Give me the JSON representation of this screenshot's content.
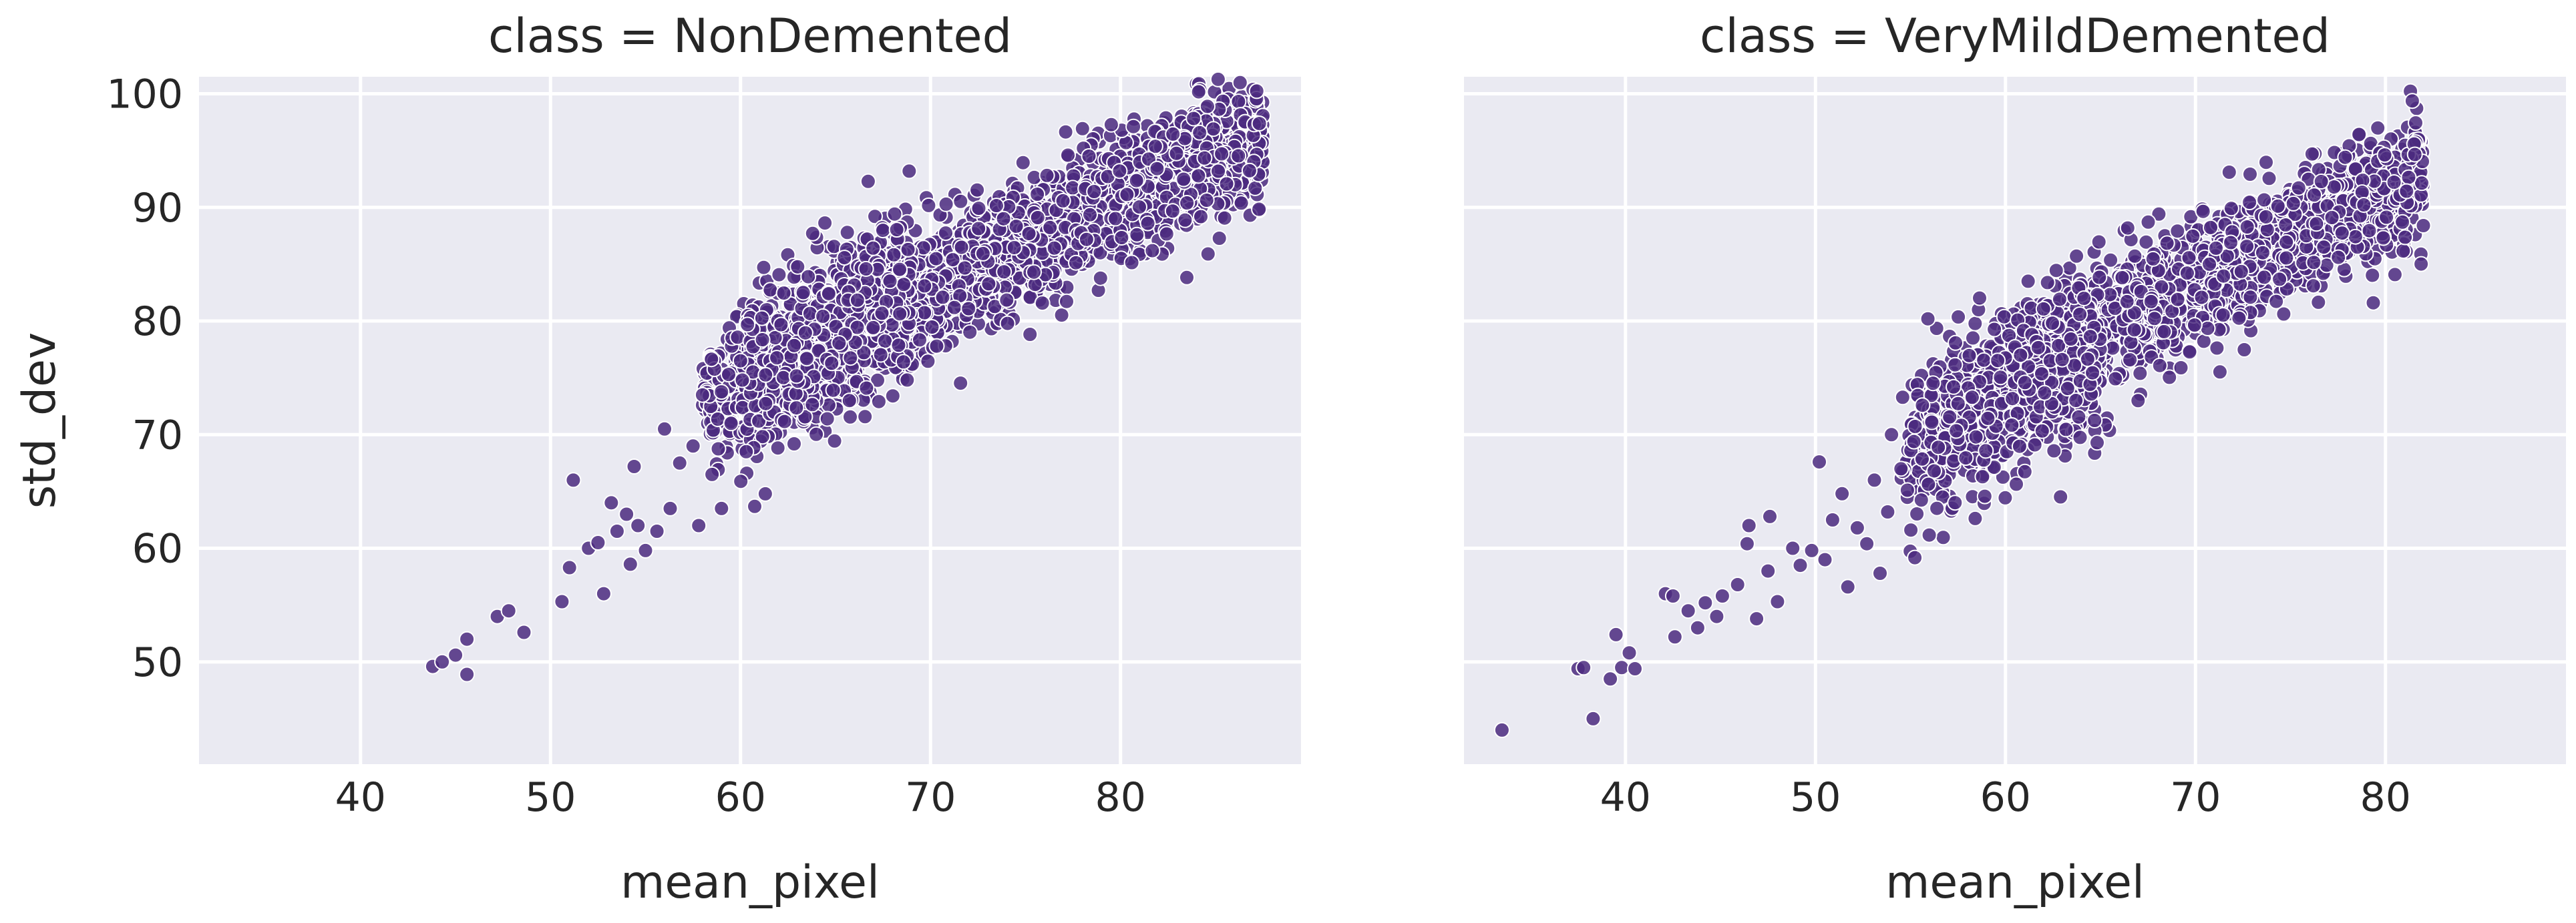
{
  "chart_data": [
    {
      "type": "scatter",
      "title": "class = NonDemented",
      "xlabel": "mean_pixel",
      "ylabel": "std_dev",
      "xlim": [
        31.5,
        89.5
      ],
      "ylim": [
        41,
        101.5
      ],
      "xticks": [
        "40",
        "50",
        "60",
        "70",
        "80"
      ],
      "yticks": [
        "50",
        "60",
        "70",
        "80",
        "90",
        "100"
      ],
      "grid": true,
      "point_color": "#4b2a7f",
      "point_alpha": 0.85,
      "outliers": [
        [
          43.8,
          49.6
        ],
        [
          44.3,
          50.0
        ],
        [
          45.0,
          50.6
        ],
        [
          45.6,
          52.0
        ],
        [
          45.6,
          48.9
        ],
        [
          47.2,
          54.0
        ],
        [
          47.8,
          54.5
        ],
        [
          48.6,
          52.6
        ],
        [
          50.6,
          55.3
        ],
        [
          51.0,
          58.3
        ],
        [
          51.2,
          66.0
        ],
        [
          52.0,
          60.0
        ],
        [
          52.5,
          60.5
        ],
        [
          52.8,
          56.0
        ],
        [
          53.2,
          64.0
        ],
        [
          53.5,
          61.5
        ],
        [
          54.0,
          63.0
        ],
        [
          54.2,
          58.6
        ],
        [
          54.4,
          67.2
        ],
        [
          54.6,
          62.0
        ],
        [
          55.0,
          59.8
        ],
        [
          55.6,
          61.5
        ],
        [
          56.0,
          70.5
        ],
        [
          56.3,
          63.5
        ],
        [
          56.8,
          67.5
        ],
        [
          57.5,
          69.0
        ],
        [
          57.8,
          62.0
        ],
        [
          58.0,
          73.5
        ],
        [
          58.5,
          66.5
        ],
        [
          59.0,
          63.5
        ],
        [
          59.5,
          71.0
        ],
        [
          60.0,
          76.5
        ],
        [
          60.3,
          68.5
        ]
      ],
      "clusters": [
        {
          "n": 2200,
          "x": [
            58,
            87.5
          ],
          "slope": 0.81,
          "intercept": 26.0,
          "noise": 2.8
        },
        {
          "n": 500,
          "x": [
            60,
            69
          ],
          "slope": 1.0,
          "intercept": 14.5,
          "noise": 3.8
        }
      ]
    },
    {
      "type": "scatter",
      "title": "class = VeryMildDemented",
      "xlabel": "mean_pixel",
      "ylabel": "",
      "xlim": [
        31.5,
        89.5
      ],
      "ylim": [
        41,
        101.5
      ],
      "xticks": [
        "40",
        "50",
        "60",
        "70",
        "80"
      ],
      "yticks": [],
      "grid": true,
      "point_color": "#4b2a7f",
      "point_alpha": 0.85,
      "outliers": [
        [
          33.5,
          44.0
        ],
        [
          37.5,
          49.4
        ],
        [
          37.8,
          49.5
        ],
        [
          38.3,
          45.0
        ],
        [
          39.2,
          48.5
        ],
        [
          39.5,
          52.4
        ],
        [
          39.8,
          49.5
        ],
        [
          40.2,
          50.8
        ],
        [
          40.5,
          49.4
        ],
        [
          42.1,
          56.0
        ],
        [
          42.5,
          55.8
        ],
        [
          42.6,
          52.2
        ],
        [
          43.3,
          54.5
        ],
        [
          43.8,
          53.0
        ],
        [
          44.2,
          55.2
        ],
        [
          44.8,
          54.0
        ],
        [
          45.1,
          55.8
        ],
        [
          45.9,
          56.8
        ],
        [
          46.4,
          60.4
        ],
        [
          46.5,
          62.0
        ],
        [
          46.9,
          53.8
        ],
        [
          47.5,
          58.0
        ],
        [
          47.6,
          62.8
        ],
        [
          48.0,
          55.3
        ],
        [
          48.8,
          60.0
        ],
        [
          49.2,
          58.5
        ],
        [
          49.8,
          59.8
        ],
        [
          50.2,
          67.6
        ],
        [
          50.5,
          59.0
        ],
        [
          50.9,
          62.5
        ],
        [
          51.4,
          64.8
        ],
        [
          51.7,
          56.6
        ],
        [
          52.2,
          61.8
        ],
        [
          52.7,
          60.4
        ],
        [
          53.1,
          66.0
        ],
        [
          53.4,
          57.8
        ],
        [
          53.8,
          63.2
        ],
        [
          54.0,
          70.0
        ],
        [
          54.5,
          67.0
        ]
      ],
      "clusters": [
        {
          "n": 1700,
          "x": [
            55,
            82
          ],
          "slope": 0.81,
          "intercept": 26.5,
          "noise": 2.9
        },
        {
          "n": 450,
          "x": [
            54.5,
            65
          ],
          "slope": 1.1,
          "intercept": 6.5,
          "noise": 3.6
        }
      ]
    }
  ]
}
